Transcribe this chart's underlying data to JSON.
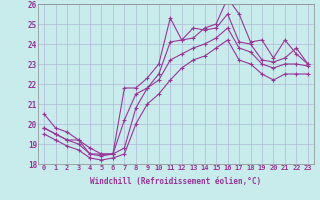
{
  "xlabel": "Windchill (Refroidissement éolien,°C)",
  "xlim": [
    -0.5,
    23.5
  ],
  "ylim": [
    18,
    26
  ],
  "xticks": [
    0,
    1,
    2,
    3,
    4,
    5,
    6,
    7,
    8,
    9,
    10,
    11,
    12,
    13,
    14,
    15,
    16,
    17,
    18,
    19,
    20,
    21,
    22,
    23
  ],
  "yticks": [
    18,
    19,
    20,
    21,
    22,
    23,
    24,
    25,
    26
  ],
  "background_color": "#c8ecec",
  "grid_color": "#b0b8d8",
  "line_color": "#993399",
  "line1_y": [
    20.5,
    19.8,
    19.6,
    19.2,
    18.8,
    18.5,
    18.5,
    21.8,
    21.8,
    22.3,
    23.0,
    25.3,
    24.2,
    24.3,
    24.8,
    25.0,
    26.3,
    25.5,
    24.1,
    24.2,
    23.3,
    24.2,
    23.5,
    23.0
  ],
  "line2_y": [
    19.8,
    19.5,
    19.2,
    19.2,
    18.5,
    18.5,
    18.5,
    20.2,
    21.5,
    21.8,
    22.5,
    24.1,
    24.2,
    24.8,
    24.7,
    24.8,
    25.5,
    24.1,
    24.0,
    23.2,
    23.1,
    23.3,
    23.8,
    23.0
  ],
  "line3_y": [
    19.8,
    19.5,
    19.2,
    19.0,
    18.5,
    18.4,
    18.5,
    18.8,
    20.8,
    21.8,
    22.2,
    23.2,
    23.5,
    23.8,
    24.0,
    24.3,
    24.8,
    23.8,
    23.6,
    23.0,
    22.8,
    23.0,
    23.0,
    22.9
  ],
  "line4_y": [
    19.5,
    19.2,
    18.9,
    18.7,
    18.3,
    18.2,
    18.3,
    18.5,
    20.0,
    21.0,
    21.5,
    22.2,
    22.8,
    23.2,
    23.4,
    23.8,
    24.2,
    23.2,
    23.0,
    22.5,
    22.2,
    22.5,
    22.5,
    22.5
  ]
}
